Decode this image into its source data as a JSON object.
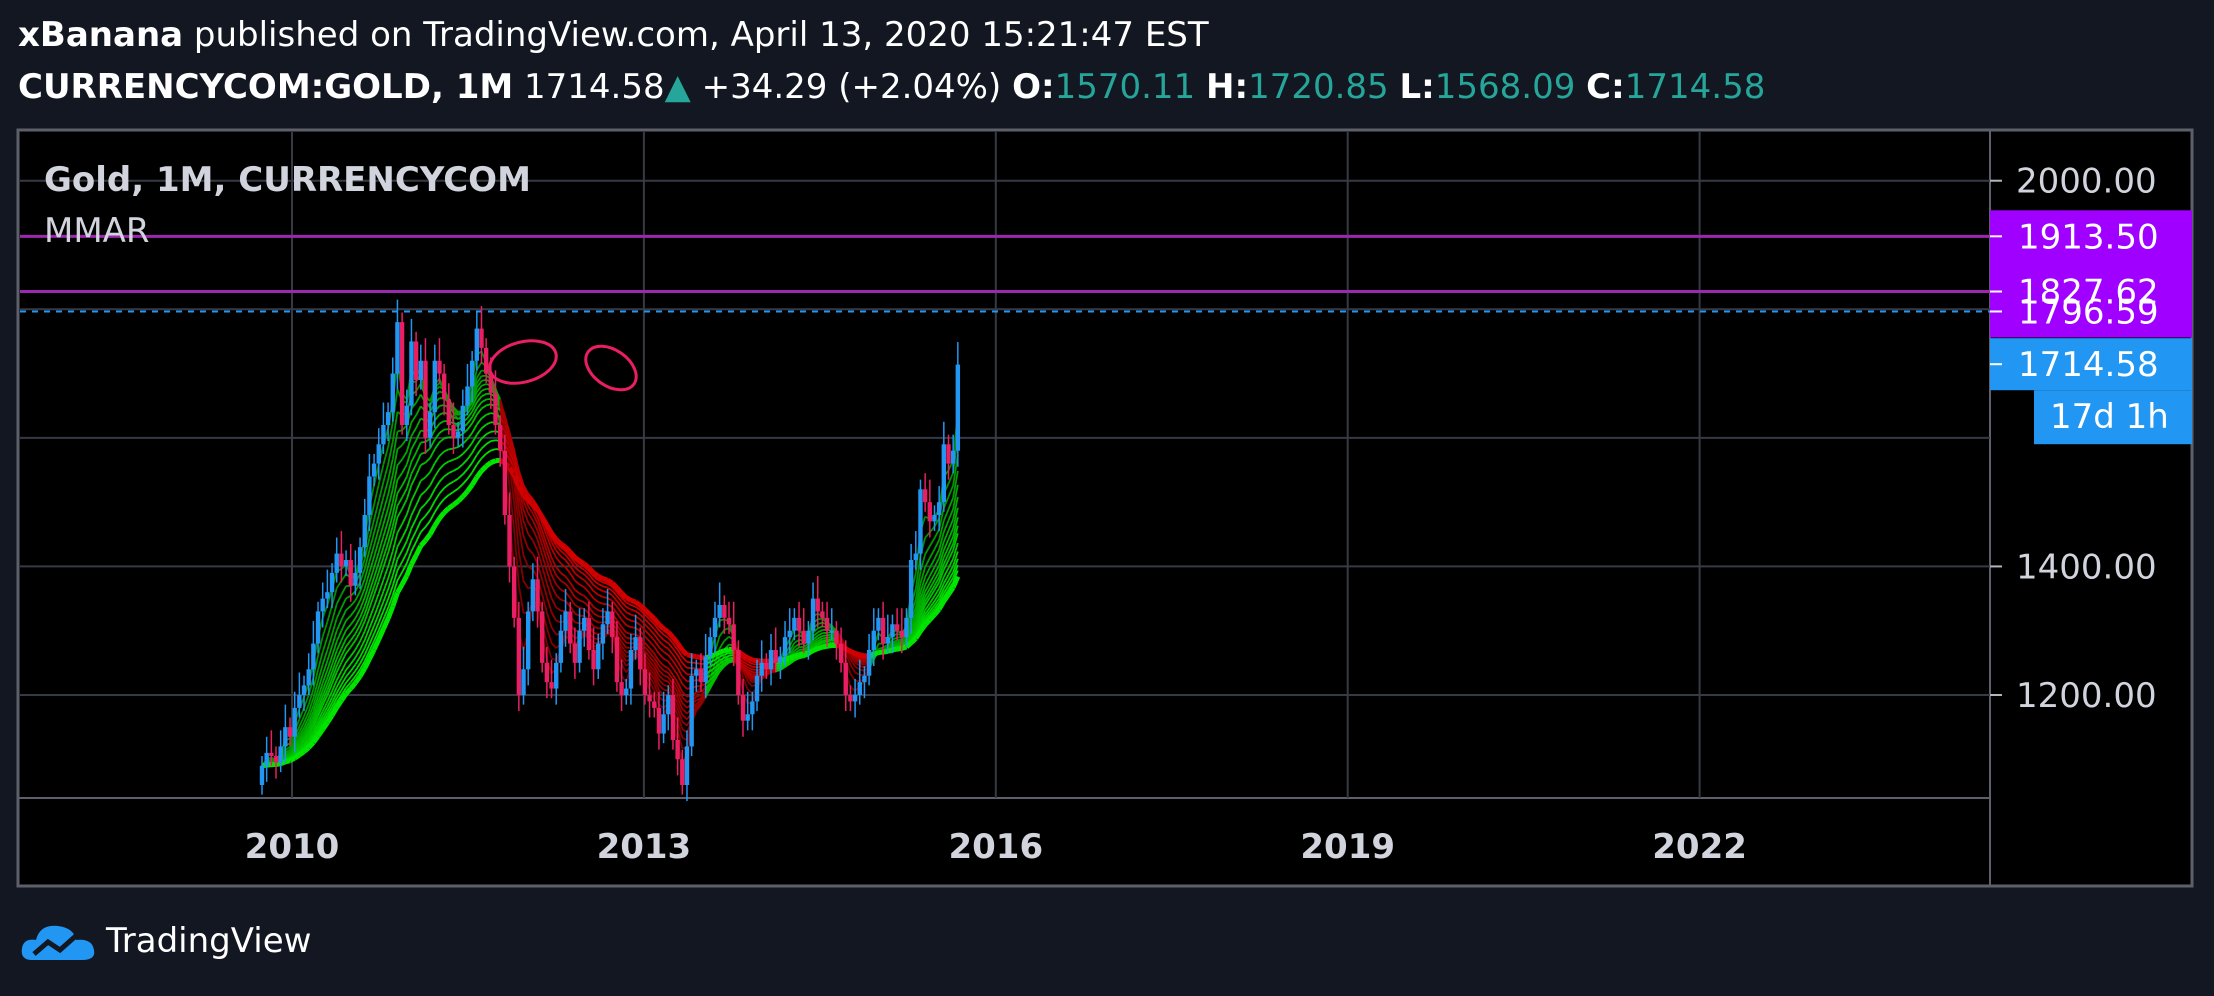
{
  "header": {
    "author": "xBanana",
    "published_text": " published on TradingView.com, April 13, 2020 15:21:47 EST",
    "symbol": "CURRENCYCOM:GOLD, 1M",
    "last": "1714.58",
    "change": "+34.29 (+2.04%)",
    "open_label": "O:",
    "open": "1570.11",
    "high_label": "H:",
    "high": "1720.85",
    "low_label": "L:",
    "low": "1568.09",
    "close_label": "C:",
    "close": "1714.58"
  },
  "legend": {
    "title": "Gold, 1M, CURRENCYCOM",
    "indicator": "MMAR"
  },
  "footer": {
    "brand": "TradingView"
  },
  "colors": {
    "background": "#000000",
    "page": "#131722",
    "grid": "#363a45",
    "up": "#2196f3",
    "down": "#e91e63",
    "level": "#9c27b0",
    "level_label": "#a000ff",
    "current": "#2196f3",
    "ribbon_up": "#00c800",
    "ribbon_down": "#8b0000"
  },
  "chart_data": {
    "type": "candlestick",
    "interval": "1M",
    "x_ticks": [
      "2010",
      "2013",
      "2016",
      "2019",
      "2022"
    ],
    "y_ticks": [
      "2000.00",
      "1400.00",
      "1200.00"
    ],
    "ylim": [
      1030,
      2050
    ],
    "levels": [
      {
        "value": 1913.5,
        "label": "1913.50"
      },
      {
        "value": 1827.62,
        "label": "1827.62"
      },
      {
        "value": 1796.59,
        "label": "1796.59"
      }
    ],
    "current_price": {
      "value": 1714.58,
      "label": "1714.58"
    },
    "countdown": "17d 1h",
    "candles_close": [
      1090,
      1110,
      1105,
      1095,
      1120,
      1150,
      1135,
      1180,
      1200,
      1215,
      1240,
      1280,
      1330,
      1350,
      1360,
      1390,
      1420,
      1400,
      1410,
      1370,
      1390,
      1430,
      1480,
      1540,
      1560,
      1590,
      1620,
      1640,
      1700,
      1780,
      1620,
      1650,
      1750,
      1690,
      1720,
      1600,
      1640,
      1720,
      1700,
      1660,
      1620,
      1600,
      1610,
      1650,
      1680,
      1720,
      1770,
      1740,
      1700,
      1670,
      1620,
      1580,
      1480,
      1400,
      1320,
      1200,
      1240,
      1330,
      1380,
      1330,
      1250,
      1220,
      1210,
      1250,
      1300,
      1330,
      1280,
      1250,
      1300,
      1320,
      1270,
      1240,
      1280,
      1310,
      1330,
      1290,
      1220,
      1200,
      1210,
      1270,
      1290,
      1240,
      1200,
      1190,
      1180,
      1140,
      1170,
      1200,
      1130,
      1100,
      1060,
      1120,
      1230,
      1240,
      1220,
      1260,
      1290,
      1320,
      1340,
      1320,
      1310,
      1270,
      1200,
      1160,
      1170,
      1190,
      1230,
      1250,
      1240,
      1270,
      1250,
      1260,
      1290,
      1300,
      1320,
      1300,
      1280,
      1300,
      1350,
      1330,
      1320,
      1300,
      1300,
      1280,
      1250,
      1200,
      1190,
      1200,
      1220,
      1230,
      1270,
      1300,
      1320,
      1280,
      1290,
      1310,
      1300,
      1290,
      1320,
      1410,
      1420,
      1520,
      1500,
      1470,
      1480,
      1500,
      1590,
      1560,
      1580,
      1714
    ]
  }
}
